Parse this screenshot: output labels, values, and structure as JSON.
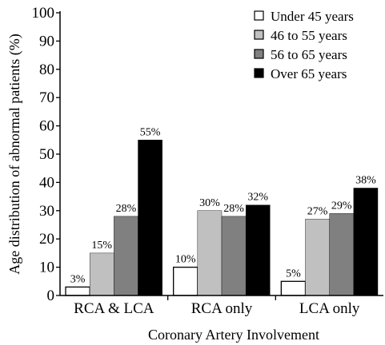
{
  "chart_data": {
    "type": "bar",
    "xlabel": "Coronary Artery Involvement",
    "ylabel": "Age distribution of abnormal patients (%)",
    "ylim": [
      0,
      100
    ],
    "yticks": [
      "0",
      "10",
      "20",
      "30",
      "40",
      "50",
      "60",
      "70",
      "80",
      "90",
      "100"
    ],
    "grid": false,
    "legend_position": "top-right",
    "categories": [
      "RCA & LCA",
      "RCA only",
      "LCA only"
    ],
    "series": [
      {
        "name": "Under 45 years",
        "color": "#ffffff",
        "values": [
          3,
          10,
          5
        ],
        "labels": [
          "3%",
          "10%",
          "5%"
        ]
      },
      {
        "name": "46 to 55 years",
        "color": "#c0c0c0",
        "values": [
          15,
          30,
          27
        ],
        "labels": [
          "15%",
          "30%",
          "27%"
        ]
      },
      {
        "name": "56 to 65 years",
        "color": "#808080",
        "values": [
          28,
          28,
          29
        ],
        "labels": [
          "28%",
          "28%",
          "29%"
        ]
      },
      {
        "name": "Over 65 years",
        "color": "#000000",
        "values": [
          55,
          32,
          38
        ],
        "labels": [
          "55%",
          "32%",
          "38%"
        ]
      }
    ]
  }
}
